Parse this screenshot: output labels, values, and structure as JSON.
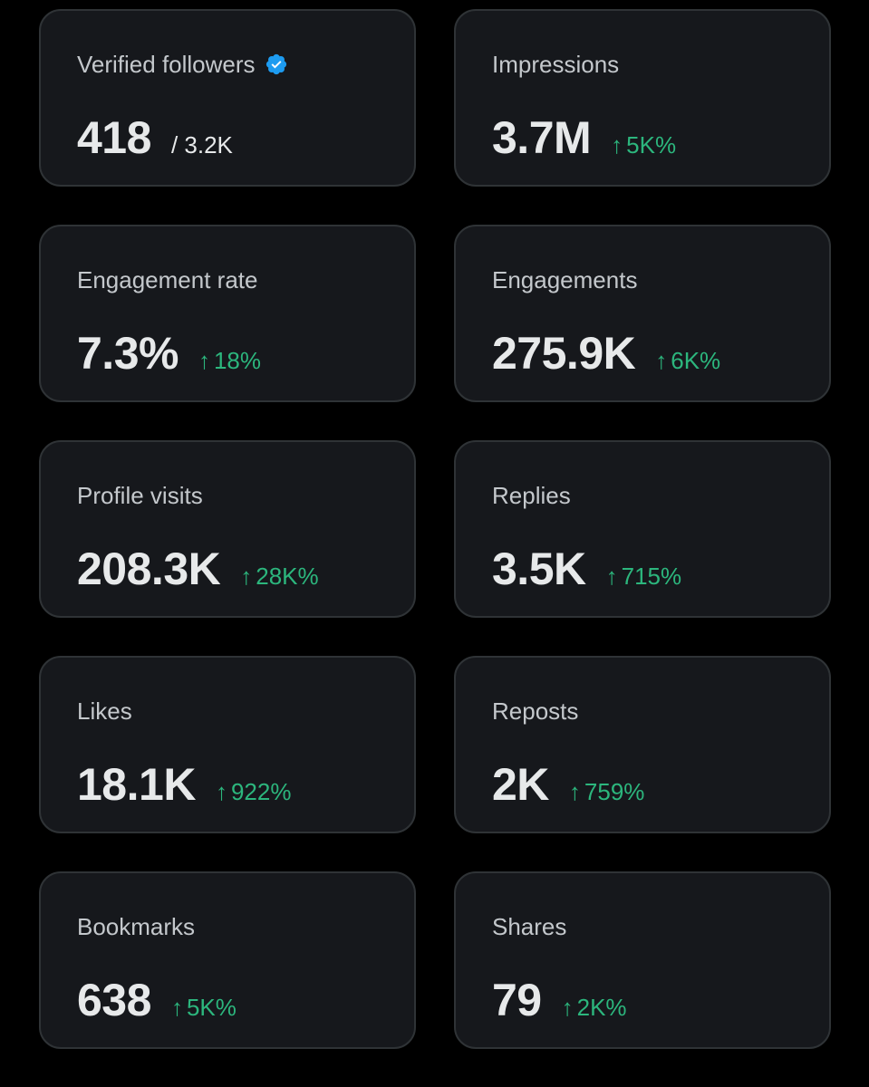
{
  "colors": {
    "background": "#000000",
    "card_bg": "#16181c",
    "card_border": "#2f3336",
    "label": "#c4c8cc",
    "value": "#e7e9ea",
    "positive": "#2cb67d",
    "verified_badge": "#1d9bf0"
  },
  "icons": {
    "verified": "verified-badge-icon",
    "up_arrow": "↑"
  },
  "metrics": {
    "verified_followers": {
      "label": "Verified followers",
      "value": "418",
      "total": "/ 3.2K"
    },
    "impressions": {
      "label": "Impressions",
      "value": "3.7M",
      "change": "5K%"
    },
    "engagement_rate": {
      "label": "Engagement rate",
      "value": "7.3%",
      "change": "18%"
    },
    "engagements": {
      "label": "Engagements",
      "value": "275.9K",
      "change": "6K%"
    },
    "profile_visits": {
      "label": "Profile visits",
      "value": "208.3K",
      "change": "28K%"
    },
    "replies": {
      "label": "Replies",
      "value": "3.5K",
      "change": "715%"
    },
    "likes": {
      "label": "Likes",
      "value": "18.1K",
      "change": "922%"
    },
    "reposts": {
      "label": "Reposts",
      "value": "2K",
      "change": "759%"
    },
    "bookmarks": {
      "label": "Bookmarks",
      "value": "638",
      "change": "5K%"
    },
    "shares": {
      "label": "Shares",
      "value": "79",
      "change": "2K%"
    }
  }
}
